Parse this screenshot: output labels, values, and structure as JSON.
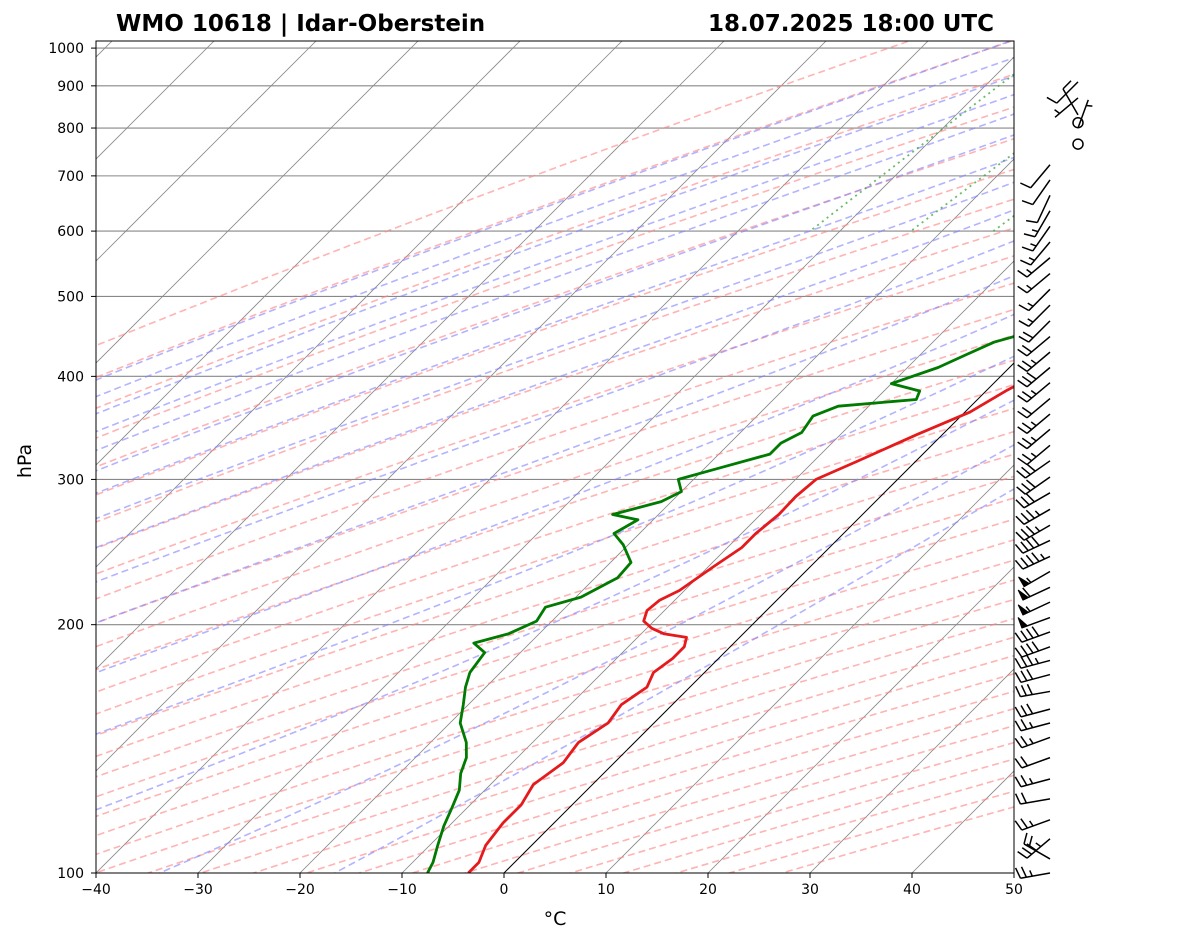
{
  "header": {
    "station": "WMO 10618 | Idar-Oberstein",
    "datetime": "18.07.2025 18:00 UTC"
  },
  "chart_data": {
    "type": "skew-t",
    "title_left": "WMO 10618 | Idar-Oberstein",
    "title_right": "18.07.2025 18:00 UTC",
    "xlabel": "°C",
    "ylabel": "hPa",
    "xlim": [
      -40,
      50
    ],
    "ylim": [
      1020,
      100
    ],
    "x_ticks": [
      -40,
      -30,
      -20,
      -10,
      0,
      10,
      20,
      30,
      40,
      50
    ],
    "x_tick_labels": [
      "−40",
      "−30",
      "−20",
      "−10",
      "0",
      "10",
      "20",
      "30",
      "40",
      "50"
    ],
    "y_ticks": [
      1000,
      900,
      800,
      700,
      600,
      500,
      400,
      300,
      200,
      100
    ],
    "y_tick_labels": [
      "1000",
      "900",
      "800",
      "700",
      "600",
      "500",
      "400",
      "300",
      "200",
      "100"
    ],
    "y_scale": "log",
    "grid": true,
    "colors": {
      "temperature": "#e41a1c",
      "dewpoint": "#007a00",
      "dry_adiabats": "#ff8080",
      "moist_adiabats": "#8080ff",
      "mixing_ratio": "#44aa44",
      "isotherm_grid": "#888888",
      "zero_isotherm": "#000000"
    },
    "series": [
      {
        "key": "temperature",
        "points": [
          [
            29.1,
            968
          ],
          [
            27.5,
            967
          ],
          [
            25.5,
            935
          ],
          [
            23.0,
            885
          ],
          [
            20.5,
            840
          ],
          [
            18.3,
            800
          ],
          [
            16.5,
            765
          ],
          [
            18.5,
            752
          ],
          [
            19.2,
            745
          ],
          [
            19.5,
            730
          ],
          [
            19.0,
            712
          ],
          [
            19.4,
            700
          ],
          [
            18.8,
            688
          ],
          [
            18.2,
            670
          ],
          [
            16.5,
            650
          ],
          [
            15.8,
            630
          ],
          [
            14.8,
            605
          ],
          [
            13.3,
            575
          ],
          [
            12.0,
            545
          ],
          [
            11.0,
            520
          ],
          [
            9.8,
            495
          ],
          [
            8.5,
            465
          ],
          [
            6.6,
            445
          ],
          [
            5.5,
            430
          ],
          [
            4.0,
            410
          ],
          [
            2.0,
            385
          ],
          [
            0.5,
            362
          ],
          [
            -2.5,
            340
          ],
          [
            -5.8,
            315
          ],
          [
            -8.0,
            300
          ],
          [
            -8.3,
            286
          ],
          [
            -8.2,
            272
          ],
          [
            -8.6,
            258
          ],
          [
            -8.6,
            248
          ],
          [
            -9.5,
            235
          ],
          [
            -10.5,
            220
          ],
          [
            -11.5,
            214
          ],
          [
            -11.7,
            208
          ],
          [
            -11.0,
            202
          ],
          [
            -9.5,
            198
          ],
          [
            -7.8,
            195
          ],
          [
            -5.2,
            193
          ],
          [
            -4.5,
            188
          ],
          [
            -4.5,
            182
          ],
          [
            -5.0,
            175
          ],
          [
            -4.2,
            168
          ],
          [
            -5.0,
            160
          ],
          [
            -4.5,
            152
          ],
          [
            -5.5,
            144
          ],
          [
            -5.0,
            136
          ],
          [
            -5.8,
            128
          ],
          [
            -5.0,
            121
          ],
          [
            -5.0,
            115
          ],
          [
            -4.5,
            108
          ],
          [
            -3.5,
            103
          ],
          [
            -3.5,
            100
          ]
        ]
      },
      {
        "key": "dewpoint",
        "points": [
          [
            10.1,
            968
          ],
          [
            10.4,
            955
          ],
          [
            11.5,
            930
          ],
          [
            12.8,
            895
          ],
          [
            14.2,
            862
          ],
          [
            15.7,
            828
          ],
          [
            16.2,
            805
          ],
          [
            15.0,
            792
          ],
          [
            14.0,
            780
          ],
          [
            13.5,
            765
          ],
          [
            4.0,
            768
          ],
          [
            -1.0,
            769
          ],
          [
            5.0,
            769
          ],
          [
            12.5,
            764
          ],
          [
            13.0,
            757
          ],
          [
            11.0,
            746
          ],
          [
            12.0,
            735
          ],
          [
            11.5,
            722
          ],
          [
            7.5,
            712
          ],
          [
            6.0,
            700
          ],
          [
            -3.0,
            687
          ],
          [
            -4.5,
            683
          ],
          [
            -6.5,
            684
          ],
          [
            -1.0,
            676
          ],
          [
            5.0,
            668
          ],
          [
            7.5,
            664
          ],
          [
            6.5,
            654
          ],
          [
            7.3,
            642
          ],
          [
            6.0,
            630
          ],
          [
            6.4,
            618
          ],
          [
            7.0,
            605
          ],
          [
            5.5,
            595
          ],
          [
            5.5,
            582
          ],
          [
            6.2,
            572
          ],
          [
            5.8,
            564
          ],
          [
            6.8,
            557
          ],
          [
            -3.0,
            557
          ],
          [
            6.5,
            552
          ],
          [
            5.0,
            547
          ],
          [
            5.8,
            540
          ],
          [
            4.5,
            530
          ],
          [
            4.5,
            517
          ],
          [
            3.5,
            505
          ],
          [
            2.5,
            492
          ],
          [
            2.8,
            478
          ],
          [
            1.5,
            465
          ],
          [
            1.0,
            452
          ],
          [
            -2.0,
            450
          ],
          [
            -4.0,
            440
          ],
          [
            -5.5,
            425
          ],
          [
            -7.0,
            410
          ],
          [
            -10.0,
            392
          ],
          [
            -6.5,
            384
          ],
          [
            -6.0,
            375
          ],
          [
            -13.0,
            368
          ],
          [
            -14.5,
            358
          ],
          [
            -14.0,
            342
          ],
          [
            -15.0,
            332
          ],
          [
            -15.0,
            322
          ],
          [
            -18.5,
            310
          ],
          [
            -21.5,
            300
          ],
          [
            -20.0,
            290
          ],
          [
            -21.0,
            282
          ],
          [
            -24.5,
            272
          ],
          [
            -21.5,
            268
          ],
          [
            -22.5,
            258
          ],
          [
            -20.5,
            250
          ],
          [
            -18.0,
            238
          ],
          [
            -17.8,
            228
          ],
          [
            -19.5,
            216
          ],
          [
            -22.0,
            210
          ],
          [
            -21.5,
            202
          ],
          [
            -23.0,
            195
          ],
          [
            -25.5,
            190
          ],
          [
            -23.5,
            185
          ],
          [
            -23.0,
            175
          ],
          [
            -22.0,
            168
          ],
          [
            -20.5,
            160
          ],
          [
            -19.0,
            152
          ],
          [
            -16.5,
            144
          ],
          [
            -15.0,
            138
          ],
          [
            -14.0,
            132
          ],
          [
            -12.5,
            126
          ],
          [
            -11.5,
            120
          ],
          [
            -10.5,
            114
          ],
          [
            -9.2,
            108
          ],
          [
            -8.0,
            103
          ],
          [
            -7.5,
            100
          ]
        ]
      }
    ],
    "mixing_ratio_lines": [
      0.4,
      1,
      2,
      3,
      5,
      8,
      12,
      16,
      20,
      24,
      28,
      36
    ],
    "mixing_ratio_top_hpa": 600,
    "dry_adiabats_theta_k": [
      230,
      240,
      250,
      260,
      270,
      280,
      290,
      300,
      310,
      320,
      330,
      340,
      350,
      360,
      370,
      380,
      390,
      400,
      410,
      420,
      430,
      440,
      450,
      460,
      470,
      480,
      490,
      500,
      510,
      520,
      530,
      540,
      550,
      560,
      570,
      580
    ],
    "moist_adiabats_start_c": [
      -30,
      -25,
      -20,
      -15,
      -10,
      -5,
      0,
      5,
      10,
      15,
      20,
      25,
      30,
      35,
      40,
      45
    ],
    "isotherms_c": [
      -140,
      -130,
      -120,
      -110,
      -100,
      -90,
      -80,
      -70,
      -60,
      -50,
      -40,
      -30,
      -20,
      -10,
      10,
      20,
      30,
      40,
      50
    ],
    "wind_barbs": {
      "columns": [
        {
          "key": "upper",
          "barbs": [
            {
              "p": 100,
              "dir": 260,
              "kt": 25
            },
            {
              "p": 104,
              "dir": 300,
              "kt": 20
            },
            {
              "p": 110,
              "dir": 230,
              "kt": 35
            },
            {
              "p": 116,
              "dir": 250,
              "kt": 25
            },
            {
              "p": 123,
              "dir": 260,
              "kt": 20
            },
            {
              "p": 130,
              "dir": 255,
              "kt": 25
            },
            {
              "p": 138,
              "dir": 250,
              "kt": 20
            },
            {
              "p": 146,
              "dir": 250,
              "kt": 25
            },
            {
              "p": 152,
              "dir": 255,
              "kt": 25
            },
            {
              "p": 158,
              "dir": 255,
              "kt": 30
            },
            {
              "p": 166,
              "dir": 260,
              "kt": 30
            },
            {
              "p": 174,
              "dir": 255,
              "kt": 30
            },
            {
              "p": 181,
              "dir": 255,
              "kt": 35
            },
            {
              "p": 188,
              "dir": 250,
              "kt": 40
            },
            {
              "p": 196,
              "dir": 250,
              "kt": 40
            },
            {
              "p": 204,
              "dir": 250,
              "kt": 50
            },
            {
              "p": 213,
              "dir": 245,
              "kt": 55
            },
            {
              "p": 222,
              "dir": 245,
              "kt": 60
            },
            {
              "p": 232,
              "dir": 240,
              "kt": 55
            },
            {
              "p": 242,
              "dir": 245,
              "kt": 45
            },
            {
              "p": 253,
              "dir": 245,
              "kt": 40
            },
            {
              "p": 264,
              "dir": 240,
              "kt": 35
            },
            {
              "p": 276,
              "dir": 240,
              "kt": 35
            },
            {
              "p": 289,
              "dir": 240,
              "kt": 30
            },
            {
              "p": 302,
              "dir": 235,
              "kt": 30
            },
            {
              "p": 316,
              "dir": 235,
              "kt": 30
            },
            {
              "p": 330,
              "dir": 230,
              "kt": 25
            },
            {
              "p": 345,
              "dir": 230,
              "kt": 25
            },
            {
              "p": 360,
              "dir": 230,
              "kt": 25
            },
            {
              "p": 376,
              "dir": 230,
              "kt": 20
            },
            {
              "p": 393,
              "dir": 230,
              "kt": 25
            },
            {
              "p": 410,
              "dir": 230,
              "kt": 30
            },
            {
              "p": 428,
              "dir": 230,
              "kt": 25
            },
            {
              "p": 447,
              "dir": 230,
              "kt": 20
            },
            {
              "p": 467,
              "dir": 225,
              "kt": 20
            },
            {
              "p": 488,
              "dir": 225,
              "kt": 15
            },
            {
              "p": 510,
              "dir": 225,
              "kt": 15
            },
            {
              "p": 533,
              "dir": 230,
              "kt": 15
            },
            {
              "p": 557,
              "dir": 230,
              "kt": 15
            },
            {
              "p": 582,
              "dir": 220,
              "kt": 15
            },
            {
              "p": 608,
              "dir": 215,
              "kt": 15
            },
            {
              "p": 635,
              "dir": 210,
              "kt": 15
            },
            {
              "p": 663,
              "dir": 205,
              "kt": 10
            },
            {
              "p": 692,
              "dir": 215,
              "kt": 10
            },
            {
              "p": 722,
              "dir": 220,
              "kt": 10
            }
          ]
        },
        {
          "key": "lower",
          "barbs": [
            {
              "p": 765,
              "dir": 0,
              "kt": 0
            },
            {
              "p": 800,
              "dir": 20,
              "kt": 5
            },
            {
              "p": 812,
              "dir": 0,
              "kt": 0
            },
            {
              "p": 830,
              "dir": 330,
              "kt": 10
            },
            {
              "p": 870,
              "dir": 230,
              "kt": 5
            },
            {
              "p": 910,
              "dir": 225,
              "kt": 10
            }
          ]
        }
      ]
    }
  }
}
